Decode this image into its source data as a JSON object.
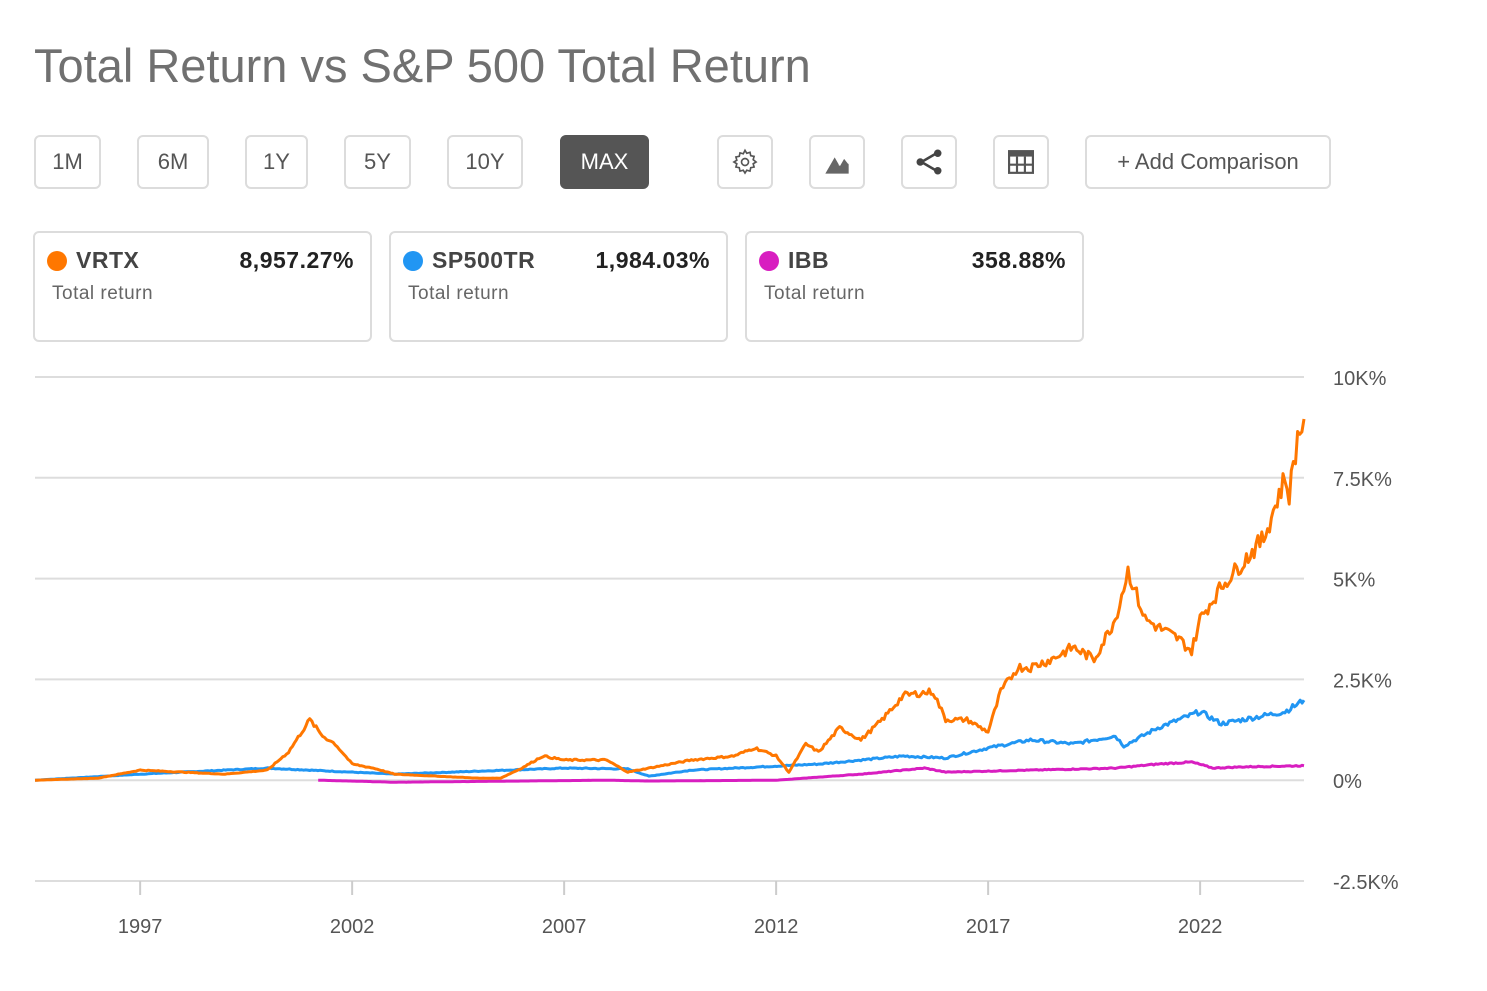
{
  "title": "Total Return vs S&P 500 Total Return",
  "ranges": [
    "1M",
    "6M",
    "1Y",
    "5Y",
    "10Y",
    "MAX"
  ],
  "active_range": "MAX",
  "toolbar": {
    "settings": "gear-icon",
    "chart_type": "area-chart-icon",
    "share": "share-icon",
    "table": "table-icon",
    "add_comparison": "+ Add Comparison"
  },
  "cards": [
    {
      "symbol": "VRTX",
      "value": "8,957.27%",
      "label": "Total return",
      "color": "#ff7700"
    },
    {
      "symbol": "SP500TR",
      "value": "1,984.03%",
      "label": "Total return",
      "color": "#2196f3"
    },
    {
      "symbol": "IBB",
      "value": "358.88%",
      "label": "Total return",
      "color": "#d81ec0"
    }
  ],
  "chart_data": {
    "type": "line",
    "xlabel": "",
    "ylabel": "Total return (%)",
    "xlim": [
      1994.52,
      2024.45
    ],
    "ylim": [
      -2500,
      10000
    ],
    "y_ticks": [
      {
        "v": 10000,
        "label": "10K%"
      },
      {
        "v": 7500,
        "label": "7.5K%"
      },
      {
        "v": 5000,
        "label": "5K%"
      },
      {
        "v": 2500,
        "label": "2.5K%"
      },
      {
        "v": 0,
        "label": "0%"
      },
      {
        "v": -2500,
        "label": "-2.5K%"
      }
    ],
    "x_ticks": [
      {
        "v": 1997,
        "label": "1997"
      },
      {
        "v": 2002,
        "label": "2002"
      },
      {
        "v": 2007,
        "label": "2007"
      },
      {
        "v": 2012,
        "label": "2012"
      },
      {
        "v": 2017,
        "label": "2017"
      },
      {
        "v": 2022,
        "label": "2022"
      }
    ],
    "grid": true,
    "series": [
      {
        "name": "SP500TR",
        "color": "#2196f3",
        "points": [
          [
            1994.52,
            0
          ],
          [
            1997,
            150
          ],
          [
            2000,
            300
          ],
          [
            2002,
            200
          ],
          [
            2003,
            150
          ],
          [
            2007,
            300
          ],
          [
            2008.5,
            280
          ],
          [
            2009,
            100
          ],
          [
            2010,
            250
          ],
          [
            2013,
            400
          ],
          [
            2015,
            600
          ],
          [
            2016,
            550
          ],
          [
            2017,
            800
          ],
          [
            2018,
            1000
          ],
          [
            2019,
            900
          ],
          [
            2020,
            1100
          ],
          [
            2020.2,
            850
          ],
          [
            2021,
            1300
          ],
          [
            2022,
            1700
          ],
          [
            2022.5,
            1400
          ],
          [
            2023,
            1500
          ],
          [
            2024,
            1700
          ],
          [
            2024.45,
            1984
          ]
        ]
      },
      {
        "name": "IBB",
        "color": "#d81ec0",
        "points": [
          [
            2001.2,
            0
          ],
          [
            2003,
            -50
          ],
          [
            2008,
            0
          ],
          [
            2009,
            -20
          ],
          [
            2012,
            0
          ],
          [
            2014,
            150
          ],
          [
            2015.5,
            300
          ],
          [
            2016,
            200
          ],
          [
            2018,
            250
          ],
          [
            2020,
            300
          ],
          [
            2021,
            400
          ],
          [
            2021.8,
            450
          ],
          [
            2022.3,
            300
          ],
          [
            2023,
            330
          ],
          [
            2024.45,
            359
          ]
        ]
      },
      {
        "name": "VRTX",
        "color": "#ff7700",
        "points": [
          [
            1994.52,
            0
          ],
          [
            1996,
            50
          ],
          [
            1997,
            250
          ],
          [
            1998,
            200
          ],
          [
            1999,
            150
          ],
          [
            2000,
            250
          ],
          [
            2000.5,
            700
          ],
          [
            2001,
            1500
          ],
          [
            2001.3,
            1100
          ],
          [
            2001.6,
            900
          ],
          [
            2002,
            400
          ],
          [
            2002.5,
            300
          ],
          [
            2003,
            150
          ],
          [
            2004,
            100
          ],
          [
            2005,
            50
          ],
          [
            2005.5,
            50
          ],
          [
            2006,
            300
          ],
          [
            2006.5,
            600
          ],
          [
            2007,
            500
          ],
          [
            2008,
            500
          ],
          [
            2008.5,
            200
          ],
          [
            2009,
            300
          ],
          [
            2010,
            500
          ],
          [
            2011,
            600
          ],
          [
            2011.5,
            800
          ],
          [
            2012,
            600
          ],
          [
            2012.3,
            200
          ],
          [
            2012.7,
            900
          ],
          [
            2013,
            700
          ],
          [
            2013.5,
            1300
          ],
          [
            2014,
            1000
          ],
          [
            2014.5,
            1500
          ],
          [
            2015,
            2100
          ],
          [
            2015.7,
            2200
          ],
          [
            2016,
            1500
          ],
          [
            2016.5,
            1500
          ],
          [
            2017,
            1200
          ],
          [
            2017.3,
            2200
          ],
          [
            2017.7,
            2800
          ],
          [
            2018,
            2800
          ],
          [
            2018.5,
            3000
          ],
          [
            2019,
            3300
          ],
          [
            2019.5,
            3000
          ],
          [
            2020,
            4000
          ],
          [
            2020.3,
            5200
          ],
          [
            2020.7,
            4000
          ],
          [
            2021,
            3800
          ],
          [
            2021.5,
            3500
          ],
          [
            2021.8,
            3200
          ],
          [
            2022,
            4000
          ],
          [
            2022.5,
            4800
          ],
          [
            2023,
            5400
          ],
          [
            2023.5,
            6000
          ],
          [
            2024,
            7500
          ],
          [
            2024.1,
            7100
          ],
          [
            2024.3,
            8500
          ],
          [
            2024.45,
            8957
          ]
        ]
      }
    ]
  }
}
